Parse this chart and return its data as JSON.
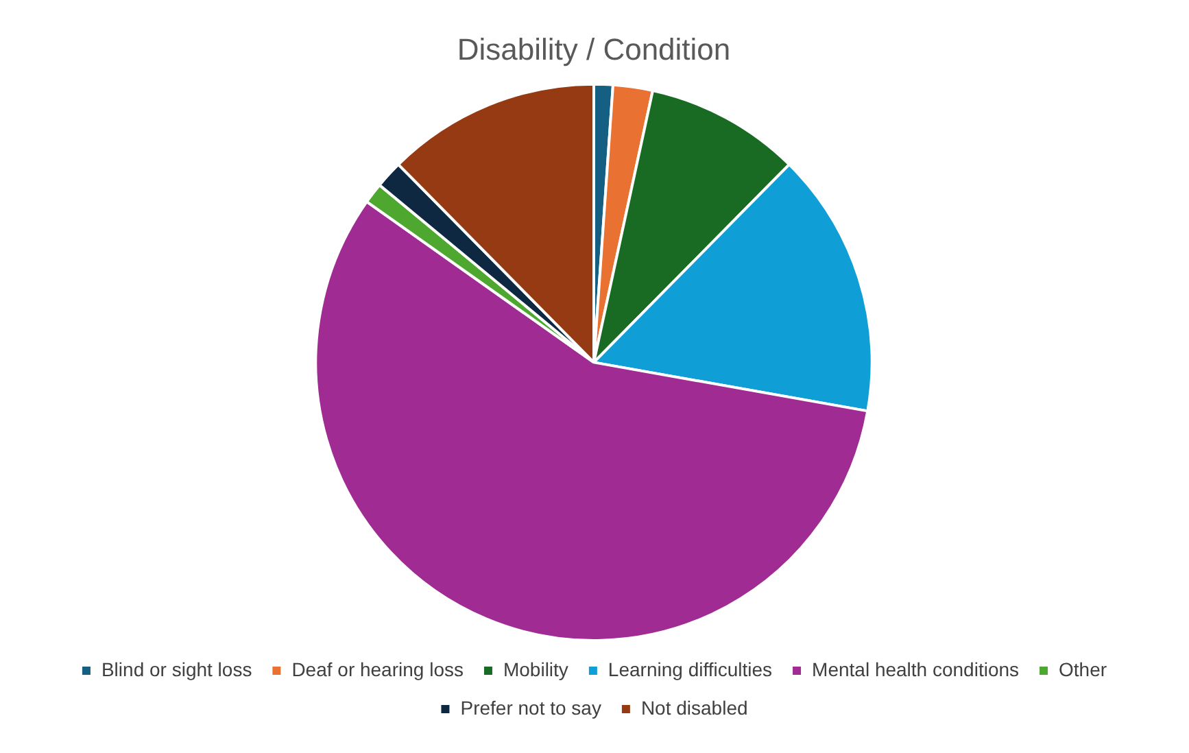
{
  "chart_data": {
    "type": "pie",
    "title": "Disability / Condition",
    "categories": [
      "Blind or sight loss",
      "Deaf or hearing loss",
      "Mobility",
      "Learning difficulties",
      "Mental health conditions",
      "Other",
      "Prefer not to say",
      "Not disabled"
    ],
    "values": [
      1.1,
      2.3,
      9.0,
      15.4,
      57.0,
      1.2,
      1.6,
      12.4
    ],
    "colors": [
      "#156082",
      "#e97132",
      "#196b24",
      "#0f9ed5",
      "#a02b93",
      "#4ea72e",
      "#0e2841",
      "#953a12"
    ],
    "legend": "bottom"
  }
}
